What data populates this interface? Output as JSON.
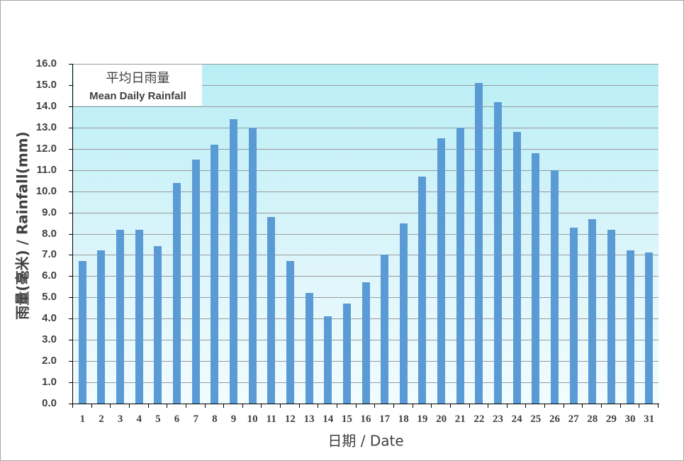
{
  "chart_data": {
    "type": "bar",
    "title": "平均日雨量 Mean Daily Rainfall",
    "legend": {
      "zh": "平均日雨量",
      "en": "Mean Daily Rainfall",
      "position": "top-left"
    },
    "xlabel": "日期 / Date",
    "ylabel": "雨量(毫米) / Rainfall(mm)",
    "ylim": [
      0,
      16
    ],
    "grid": true,
    "bar_color": "#5b9bd5",
    "y_ticks": [
      "0.0",
      "1.0",
      "2.0",
      "3.0",
      "4.0",
      "5.0",
      "6.0",
      "7.0",
      "8.0",
      "9.0",
      "10.0",
      "11.0",
      "12.0",
      "13.0",
      "14.0",
      "15.0",
      "16.0"
    ],
    "categories": [
      "1",
      "2",
      "3",
      "4",
      "5",
      "6",
      "7",
      "8",
      "9",
      "10",
      "11",
      "12",
      "13",
      "14",
      "15",
      "16",
      "17",
      "18",
      "19",
      "20",
      "21",
      "22",
      "23",
      "24",
      "25",
      "26",
      "27",
      "28",
      "29",
      "30",
      "31"
    ],
    "values": [
      6.7,
      7.2,
      8.2,
      8.2,
      7.4,
      10.4,
      11.5,
      12.2,
      13.4,
      13.0,
      8.8,
      6.7,
      5.2,
      4.1,
      4.7,
      5.7,
      7.0,
      8.5,
      10.7,
      12.5,
      13.0,
      15.1,
      14.2,
      12.8,
      11.8,
      11.0,
      8.3,
      8.7,
      8.2,
      7.2,
      7.1
    ]
  }
}
